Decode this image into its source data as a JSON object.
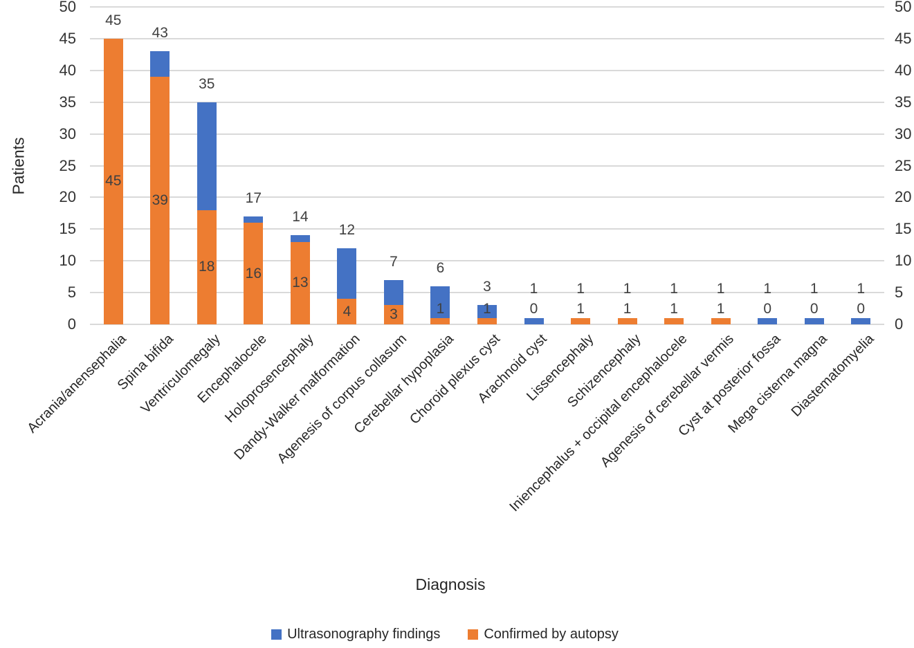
{
  "chart_data": {
    "type": "bar",
    "stacked": true,
    "title": "",
    "xlabel": "Diagnosis",
    "ylabel": "Patients",
    "ylim": [
      0,
      50
    ],
    "yticks": [
      0,
      5,
      10,
      15,
      20,
      25,
      30,
      35,
      40,
      45,
      50
    ],
    "y_axis_mirrored_right": true,
    "grid": true,
    "legend_position": "bottom",
    "categories": [
      "Acrania/anensephalia",
      "Spina bifida",
      "Ventriculomegaly",
      "Encephalocele",
      "Holoprosencephaly",
      "Dandy-Walker malformation",
      "Agenesis of corpus collasum",
      "Cerebellar hypoplasia",
      "Choroid plexus cyst",
      "Arachnoid cyst",
      "Lissencephaly",
      "Schizencephaly",
      "Iniencephalus + occipital encephalocele",
      "Agenesis of cerebellar vermis",
      "Cyst at posterior fossa",
      "Mega cisterna magna",
      "Diastematomyelia"
    ],
    "series": [
      {
        "name": "Ultrasonography findings",
        "color": "#4472C4",
        "role": "bar-total-labeled-above",
        "values": [
          45,
          43,
          35,
          17,
          14,
          12,
          7,
          6,
          3,
          1,
          1,
          1,
          1,
          1,
          1,
          1,
          1
        ]
      },
      {
        "name": "Confirmed by autopsy",
        "color": "#ED7D31",
        "role": "bottom-segment-labeled-inside",
        "values": [
          45,
          39,
          18,
          16,
          13,
          4,
          3,
          1,
          1,
          0,
          1,
          1,
          1,
          1,
          0,
          0,
          0
        ]
      }
    ]
  },
  "colors": {
    "blue": "#4472C4",
    "orange": "#ED7D31",
    "gridline": "#D9D9D9",
    "axis_line": "#D9D9D9",
    "data_label_text": "#404040",
    "axis_text": "#333333"
  }
}
